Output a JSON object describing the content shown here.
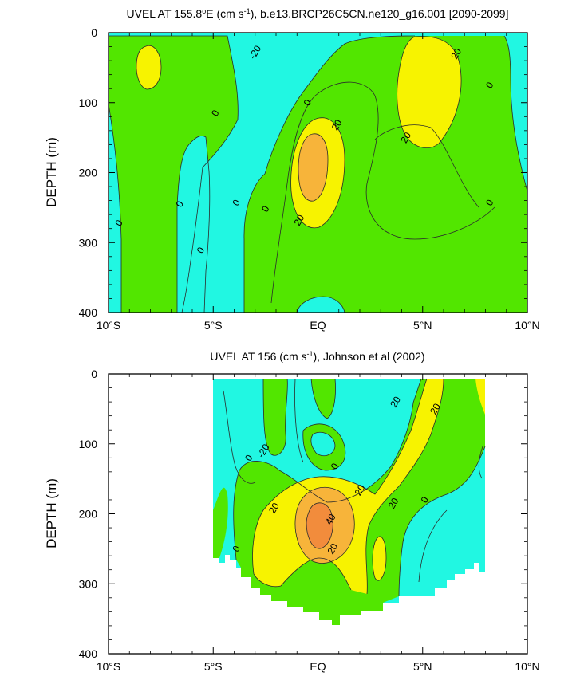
{
  "chart_data": [
    {
      "type": "contour",
      "title": "UVEL AT 155.8°E (cm s-1), b.e13.BRCP26C5CN.ne120_g16.001 [2090-2099]",
      "title_parts": {
        "pre": "UVEL AT 155.8",
        "deg": "o",
        "mid": "E (cm s",
        "sup": "-1",
        "post": "), b.e13.BRCP26C5CN.ne120_g16.001 [2090-2099]"
      },
      "xlabel": "",
      "ylabel": "DEPTH (m)",
      "xlim": [
        -10,
        10
      ],
      "ylim": [
        400,
        0
      ],
      "x_ticks": [
        -10,
        -5,
        0,
        5,
        10
      ],
      "x_tick_labels": [
        "10°S",
        "5°S",
        "EQ",
        "5°N",
        "10°N"
      ],
      "y_ticks": [
        0,
        100,
        200,
        300,
        400
      ],
      "y_tick_labels": [
        "0",
        "100",
        "200",
        "300",
        "400"
      ],
      "contour_levels": [
        -20,
        0,
        20,
        40
      ],
      "contour_labels": [
        {
          "text": "-20",
          "x": -3.0,
          "y": 28
        },
        {
          "text": "20",
          "x": 6.6,
          "y": 30
        },
        {
          "text": "0",
          "x": 8.2,
          "y": 75
        },
        {
          "text": "0",
          "x": -4.9,
          "y": 115
        },
        {
          "text": "0",
          "x": -0.5,
          "y": 100
        },
        {
          "text": "20",
          "x": 0.9,
          "y": 132
        },
        {
          "text": "20",
          "x": 4.2,
          "y": 150
        },
        {
          "text": "0",
          "x": -9.5,
          "y": 272
        },
        {
          "text": "0",
          "x": -6.6,
          "y": 245
        },
        {
          "text": "0",
          "x": -3.9,
          "y": 243
        },
        {
          "text": "0",
          "x": -2.5,
          "y": 252
        },
        {
          "text": "20",
          "x": -0.9,
          "y": 268
        },
        {
          "text": "0",
          "x": 8.2,
          "y": 243
        },
        {
          "text": "0",
          "x": -5.6,
          "y": 311
        }
      ]
    },
    {
      "type": "contour",
      "title": "UVEL AT 156 (cm s-1), Johnson et al (2002)",
      "title_parts": {
        "pre": "UVEL AT 156 (cm s",
        "sup": "-1",
        "post": "), Johnson et al (2002)"
      },
      "xlabel": "",
      "ylabel": "DEPTH (m)",
      "xlim": [
        -10,
        10
      ],
      "ylim": [
        400,
        0
      ],
      "x_ticks": [
        -10,
        -5,
        0,
        5,
        10
      ],
      "x_tick_labels": [
        "10°S",
        "5°S",
        "EQ",
        "5°N",
        "10°N"
      ],
      "y_ticks": [
        0,
        100,
        200,
        300,
        400
      ],
      "y_tick_labels": [
        "0",
        "100",
        "200",
        "300",
        "400"
      ],
      "data_extent": {
        "x": [
          -5,
          8
        ]
      },
      "contour_levels": [
        -20,
        0,
        20,
        40
      ],
      "contour_labels": [
        {
          "text": "20",
          "x": 3.7,
          "y": 40
        },
        {
          "text": "20",
          "x": 5.6,
          "y": 50
        },
        {
          "text": "-20",
          "x": -2.6,
          "y": 110
        },
        {
          "text": "0",
          "x": -3.3,
          "y": 120
        },
        {
          "text": "0",
          "x": 0.8,
          "y": 132
        },
        {
          "text": "20",
          "x": 2.0,
          "y": 166
        },
        {
          "text": "20",
          "x": -2.1,
          "y": 192
        },
        {
          "text": "40",
          "x": 0.6,
          "y": 208
        },
        {
          "text": "20",
          "x": 3.6,
          "y": 185
        },
        {
          "text": "0",
          "x": 5.1,
          "y": 180
        },
        {
          "text": "20",
          "x": 0.7,
          "y": 250
        },
        {
          "text": "0",
          "x": -3.9,
          "y": 250
        }
      ]
    }
  ]
}
